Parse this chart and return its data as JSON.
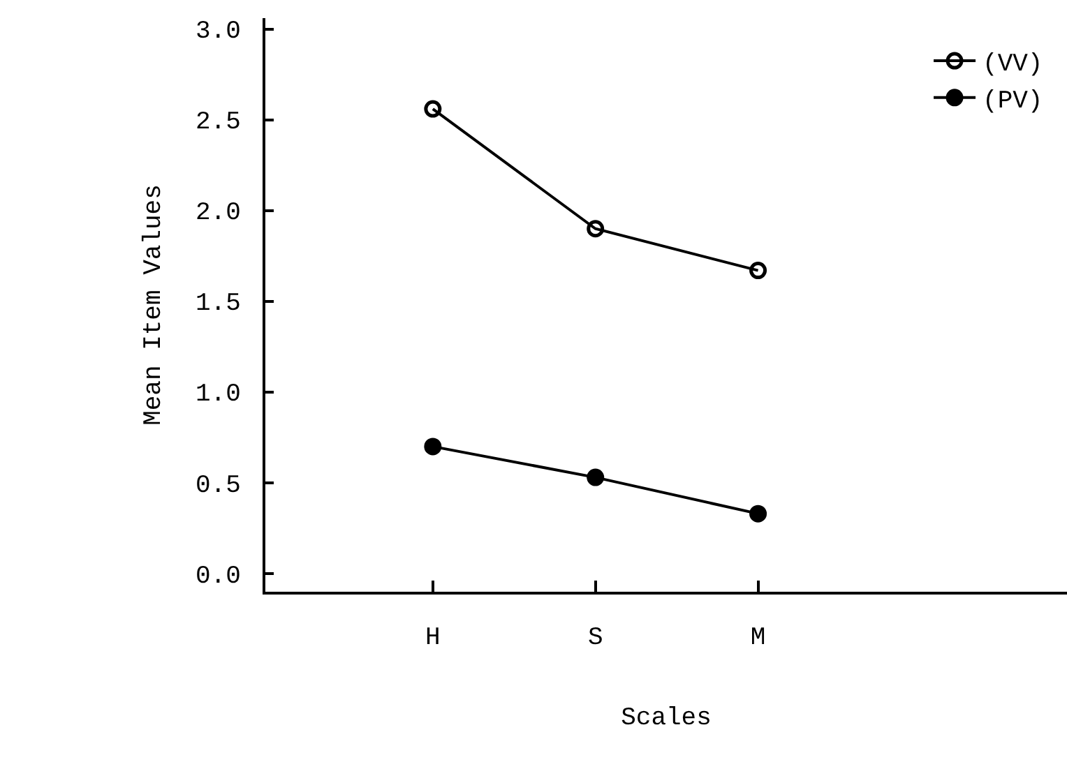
{
  "chart_data": {
    "type": "line",
    "xlabel": "Scales",
    "ylabel": "Mean Item Values",
    "categories": [
      "H",
      "S",
      "M"
    ],
    "series": [
      {
        "name": "(VV)",
        "color": "#000000",
        "marker": "circle-open",
        "values": [
          2.56,
          1.9,
          1.67
        ]
      },
      {
        "name": "(PV)",
        "color": "#000000",
        "marker": "circle",
        "values": [
          0.7,
          0.53,
          0.33
        ]
      }
    ],
    "ylim": [
      -0.1,
      3.06
    ],
    "yticks": [
      {
        "value": 0,
        "label": "0.0"
      },
      {
        "value": 0.5,
        "label": "0.5"
      },
      {
        "value": 1,
        "label": "1.0"
      },
      {
        "value": 1.5,
        "label": "1.5"
      },
      {
        "value": 2,
        "label": "2.0"
      },
      {
        "value": 2.5,
        "label": "2.5"
      },
      {
        "value": 3,
        "label": "3.0"
      }
    ],
    "grid": false,
    "legend": "top right",
    "line_style": "solid"
  }
}
